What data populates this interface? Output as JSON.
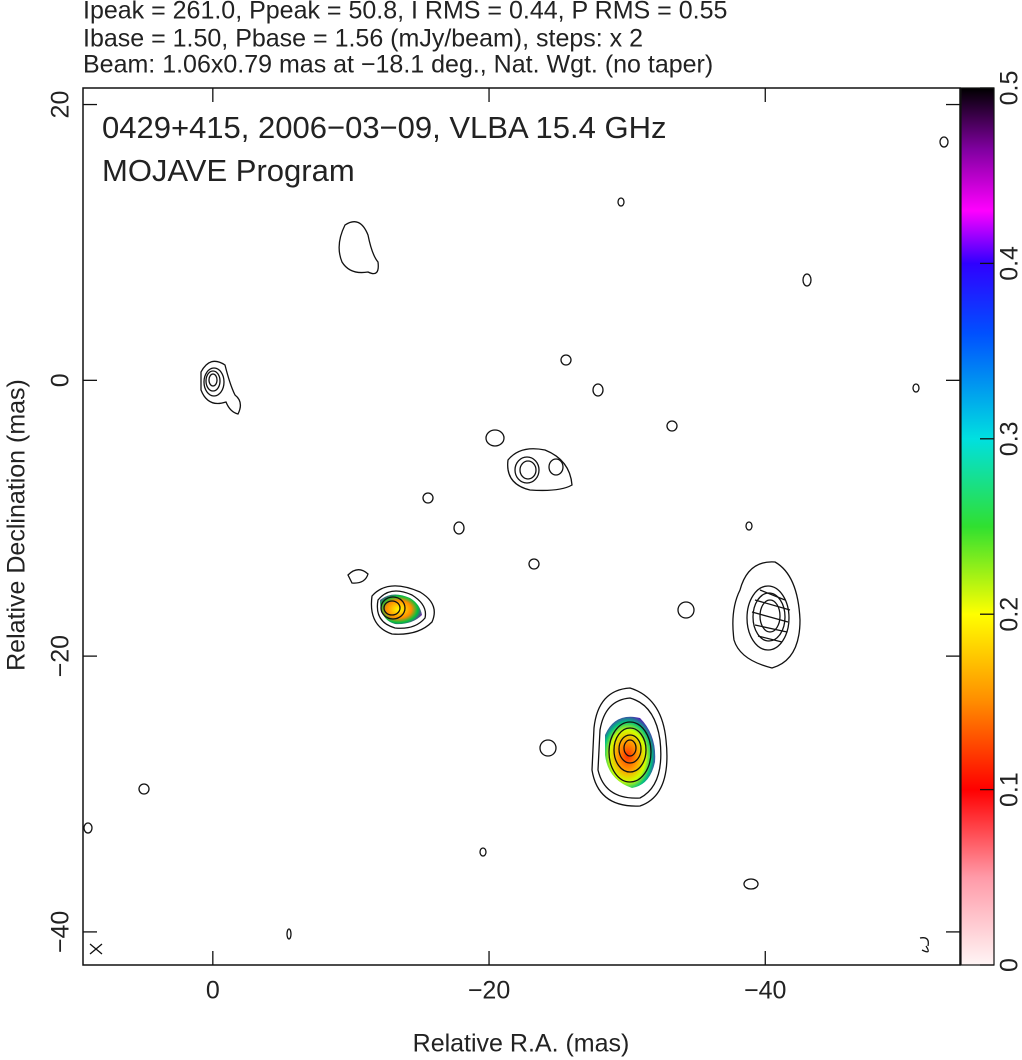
{
  "chart_data": {
    "type": "contour",
    "header": [
      "Ipeak = 261.0, Ppeak = 50.8, I RMS = 0.44, P RMS = 0.55",
      "Ibase = 1.50, Pbase = 1.56 (mJy/beam), steps: x 2",
      "Beam: 1.06x0.79 mas at −18.1 deg., Nat. Wgt. (no taper)"
    ],
    "annotations": [
      "0429+415, 2006−03−09, VLBA 15.4 GHz",
      "MOJAVE Program"
    ],
    "xlabel": "Relative R.A. (mas)",
    "ylabel": "Relative Declination (mas)",
    "xlim": [
      9.4,
      -54.1
    ],
    "ylim": [
      -42.4,
      21.2
    ],
    "xticks": [
      {
        "value": 0,
        "label": "0"
      },
      {
        "value": -20,
        "label": "−20"
      },
      {
        "value": -40,
        "label": "−40"
      }
    ],
    "yticks": [
      {
        "value": 20,
        "label": "20"
      },
      {
        "value": 0,
        "label": "0"
      },
      {
        "value": -20,
        "label": "−20"
      },
      {
        "value": -40,
        "label": "−40"
      }
    ],
    "colorbar_lim": [
      0,
      0.5
    ],
    "colorbar_ticks": [
      0,
      0.1,
      0.2,
      0.3,
      0.4,
      0.5
    ]
  }
}
